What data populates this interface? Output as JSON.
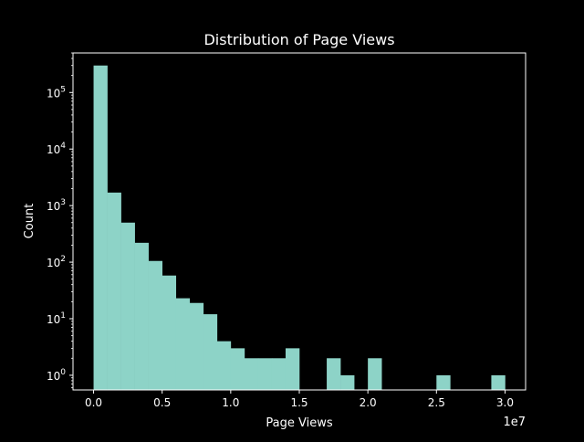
{
  "chart_data": {
    "type": "bar",
    "title": "Distribution of Page Views",
    "xlabel": "Page Views",
    "ylabel": "Count",
    "x_offset_label": "1e7",
    "x_scale": "linear",
    "y_scale": "log",
    "xlim": [
      -1500000,
      31500000
    ],
    "ylim": [
      0.55,
      500000
    ],
    "x_ticks": [
      {
        "value": 0,
        "label": "0.0"
      },
      {
        "value": 5000000,
        "label": "0.5"
      },
      {
        "value": 10000000,
        "label": "1.0"
      },
      {
        "value": 15000000,
        "label": "1.5"
      },
      {
        "value": 20000000,
        "label": "2.0"
      },
      {
        "value": 25000000,
        "label": "2.5"
      },
      {
        "value": 30000000,
        "label": "3.0"
      }
    ],
    "y_ticks": [
      {
        "value": 1,
        "base": "10",
        "exp": "0"
      },
      {
        "value": 10,
        "base": "10",
        "exp": "1"
      },
      {
        "value": 100,
        "base": "10",
        "exp": "2"
      },
      {
        "value": 1000,
        "base": "10",
        "exp": "3"
      },
      {
        "value": 10000,
        "base": "10",
        "exp": "4"
      },
      {
        "value": 100000,
        "base": "10",
        "exp": "5"
      }
    ],
    "bin_edges": [
      0,
      1000000,
      2000000,
      3000000,
      4000000,
      5000000,
      6000000,
      7000000,
      8000000,
      9000000,
      10000000,
      11000000,
      12000000,
      13000000,
      14000000,
      15000000,
      16000000,
      17000000,
      18000000,
      19000000,
      20000000,
      21000000,
      22000000,
      23000000,
      24000000,
      25000000,
      26000000,
      27000000,
      28000000,
      29000000,
      30000000
    ],
    "counts": [
      300000,
      1700,
      500,
      220,
      105,
      58,
      23,
      19,
      12,
      4,
      3,
      2,
      2,
      2,
      3,
      0,
      0,
      2,
      1,
      0,
      2,
      0,
      0,
      0,
      0,
      1,
      0,
      0,
      0,
      1
    ],
    "bar_color": "#8dd3c7",
    "grid": false,
    "legend": "none"
  }
}
